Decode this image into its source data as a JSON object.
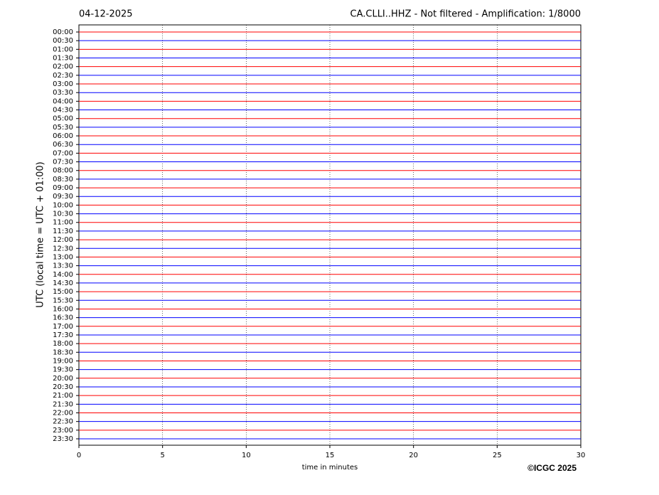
{
  "chart_data": {
    "type": "helicorder",
    "date": "04-12-2025",
    "title": "CA.CLLI..HHZ - Not filtered - Amplification: 1/8000",
    "ylabel": "UTC (local time = UTC + 01:00)",
    "xlabel": "time in minutes",
    "credit": "©ICGC 2025",
    "xlim": [
      0,
      30
    ],
    "xticks": [
      0,
      5,
      10,
      15,
      20,
      25,
      30
    ],
    "grid": true,
    "colors": [
      "#ff0000",
      "#0000ff"
    ],
    "categories": [
      "00:00",
      "00:30",
      "01:00",
      "01:30",
      "02:00",
      "02:30",
      "03:00",
      "03:30",
      "04:00",
      "04:30",
      "05:00",
      "05:30",
      "06:00",
      "06:30",
      "07:00",
      "07:30",
      "08:00",
      "08:30",
      "09:00",
      "09:30",
      "10:00",
      "10:30",
      "11:00",
      "11:30",
      "12:00",
      "12:30",
      "13:00",
      "13:30",
      "14:00",
      "14:30",
      "15:00",
      "15:30",
      "16:00",
      "16:30",
      "17:00",
      "17:30",
      "18:00",
      "18:30",
      "19:00",
      "19:30",
      "20:00",
      "20:30",
      "21:00",
      "21:30",
      "22:00",
      "22:30",
      "23:00",
      "23:30"
    ]
  }
}
